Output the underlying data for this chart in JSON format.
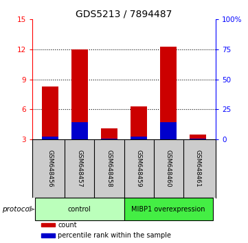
{
  "title": "GDS5213 / 7894487",
  "samples": [
    "GSM648456",
    "GSM648457",
    "GSM648458",
    "GSM648459",
    "GSM648460",
    "GSM648461"
  ],
  "red_values": [
    8.3,
    12.0,
    4.1,
    6.3,
    12.3,
    3.5
  ],
  "blue_values": [
    3.3,
    4.7,
    3.1,
    3.3,
    4.7,
    3.1
  ],
  "left_ylim": [
    3,
    15
  ],
  "left_yticks": [
    3,
    6,
    9,
    12,
    15
  ],
  "right_ylim": [
    0,
    100
  ],
  "right_yticks": [
    0,
    25,
    50,
    75,
    100
  ],
  "right_yticklabels": [
    "0",
    "25",
    "50",
    "75",
    "100%"
  ],
  "bar_width": 0.55,
  "red_color": "#cc0000",
  "blue_color": "#0000cc",
  "protocol_groups": [
    {
      "label": "control",
      "start": 0,
      "end": 3,
      "color": "#bbffbb"
    },
    {
      "label": "MIBP1 overexpression",
      "start": 3,
      "end": 6,
      "color": "#44ee44"
    }
  ],
  "sample_box_color": "#cccccc",
  "legend_items": [
    {
      "color": "#cc0000",
      "label": "count"
    },
    {
      "color": "#0000cc",
      "label": "percentile rank within the sample"
    }
  ],
  "protocol_label": "protocol",
  "title_fontsize": 10,
  "tick_fontsize": 7.5,
  "label_fontsize": 7.5
}
